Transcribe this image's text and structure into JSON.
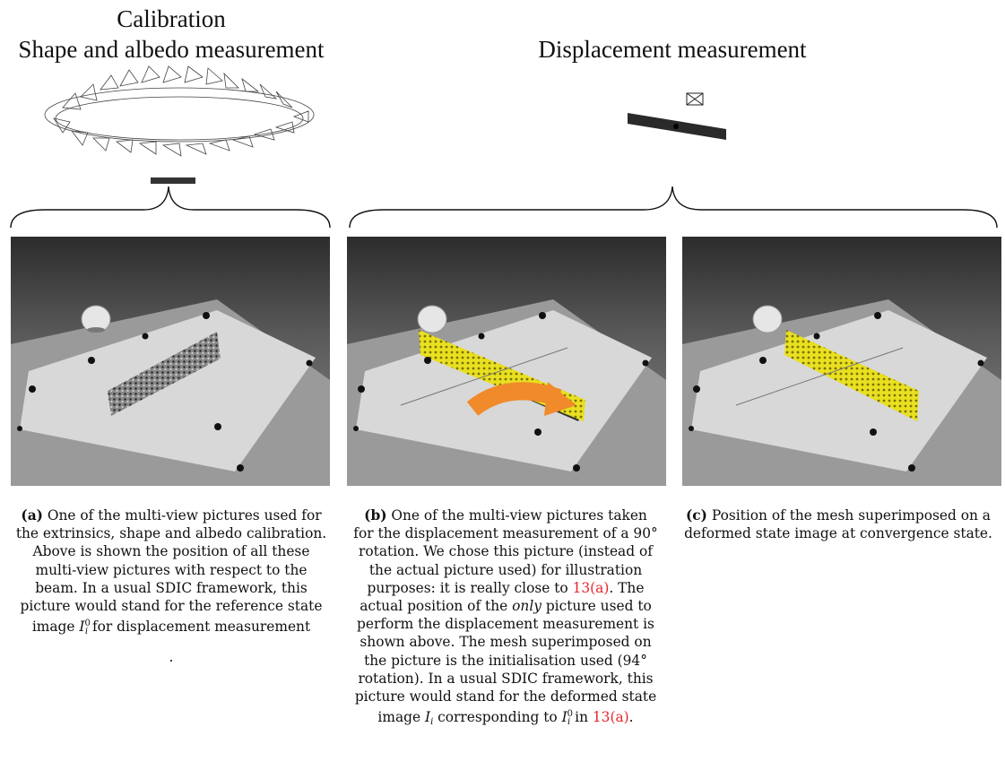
{
  "headings": {
    "calibration_line1": "Calibration",
    "calibration_line2": "Shape and albedo measurement",
    "displacement": "Displacement measurement"
  },
  "panels": [
    {
      "label": "(a)",
      "lines": [
        " One of the multi-view pictures used for",
        "the extrinsics, shape and albedo calibration.",
        "Above is shown the position of all these",
        "multi-view pictures with respect to the",
        "beam. In a usual SDIC framework, this",
        "picture would stand for the reference state"
      ],
      "last_line_pre": "image ",
      "last_line_var": "I",
      "last_line_sub": "i",
      "last_line_sup": "0",
      "last_line_post": " for displacement measurement",
      "trailing": "."
    },
    {
      "label": "(b)",
      "l1": " One of the multi-view pictures taken",
      "l2": "for the displacement measurement of a 90°",
      "l3": "rotation. We chose this picture (instead of",
      "l4": "the actual picture used) for illustration",
      "l5_pre": "purposes: it is really close to ",
      "l5_ref": "13(a)",
      "l5_post": ". The",
      "l6_pre": "actual position of the ",
      "l6_em": "only",
      "l6_post": " picture used to",
      "l7": "perform the displacement measurement is",
      "l8": "shown above. The mesh superimposed on",
      "l9": "the picture is the initialisation used (94°",
      "l10": "rotation). In a usual SDIC framework, this",
      "l11": "picture would stand for the deformed state",
      "l12_pre": "image ",
      "l12_var": "I",
      "l12_sub": "i",
      "l12_mid": " corresponding to ",
      "l12_var2": "I",
      "l12_sub2": "i",
      "l12_sup2": "0",
      "l12_in": " in ",
      "l12_ref": "13(a)",
      "l12_end": "."
    },
    {
      "label": "(c)",
      "l1": " Position of the mesh superimposed on a",
      "l2": "deformed state image at convergence state."
    }
  ],
  "colors": {
    "link_red": "#e8262b",
    "mesh_yellow": "#e8e020",
    "arrow_orange": "#f08a2a"
  }
}
